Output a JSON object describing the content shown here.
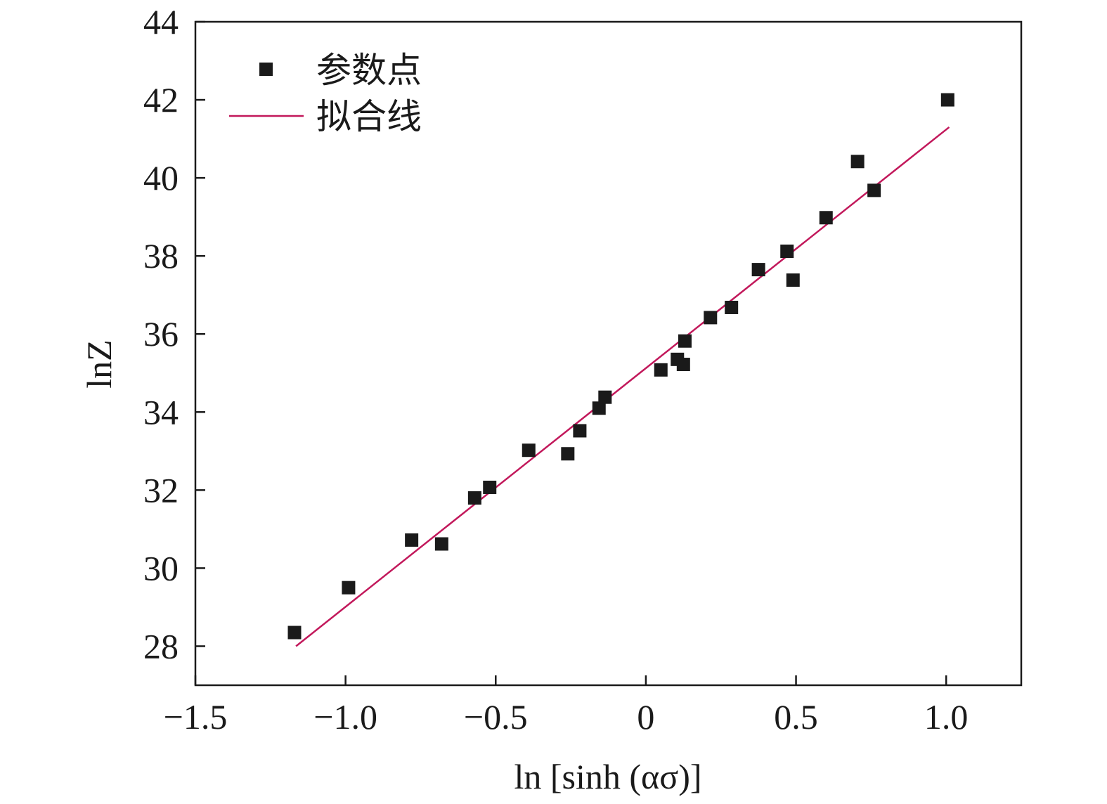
{
  "chart_data": {
    "type": "scatter",
    "xlabel": "ln [sinh (ασ)]",
    "ylabel": "lnZ",
    "xlim": [
      -1.5,
      1.25
    ],
    "ylim": [
      27,
      44
    ],
    "x_ticks": [
      -1.5,
      -1.0,
      -0.5,
      0,
      0.5,
      1.0
    ],
    "x_tick_labels": [
      "−1.5",
      "−1.0",
      "−0.5",
      "0",
      "0.5",
      "1.0"
    ],
    "y_ticks": [
      28,
      30,
      32,
      34,
      36,
      38,
      40,
      42,
      44
    ],
    "y_tick_labels": [
      "28",
      "30",
      "32",
      "34",
      "36",
      "38",
      "40",
      "42",
      "44"
    ],
    "grid": false,
    "legend_position": "top-left",
    "series": [
      {
        "name": "参数点",
        "kind": "scatter",
        "marker": "square",
        "color": "#1a1a1a",
        "points": [
          [
            -1.17,
            28.35
          ],
          [
            -0.99,
            29.5
          ],
          [
            -0.78,
            30.72
          ],
          [
            -0.68,
            30.62
          ],
          [
            -0.57,
            31.8
          ],
          [
            -0.52,
            32.07
          ],
          [
            -0.39,
            33.02
          ],
          [
            -0.26,
            32.93
          ],
          [
            -0.22,
            33.52
          ],
          [
            -0.156,
            34.1
          ],
          [
            -0.136,
            34.38
          ],
          [
            0.05,
            35.08
          ],
          [
            0.105,
            35.35
          ],
          [
            0.125,
            35.22
          ],
          [
            0.13,
            35.82
          ],
          [
            0.215,
            36.42
          ],
          [
            0.285,
            36.68
          ],
          [
            0.375,
            37.65
          ],
          [
            0.47,
            38.12
          ],
          [
            0.49,
            37.38
          ],
          [
            0.6,
            38.98
          ],
          [
            0.705,
            40.42
          ],
          [
            0.76,
            39.68
          ],
          [
            1.005,
            42.0
          ]
        ]
      },
      {
        "name": "拟合线",
        "kind": "line",
        "color": "#c2185b",
        "points": [
          [
            -1.165,
            28.0
          ],
          [
            1.01,
            41.3
          ]
        ]
      }
    ]
  }
}
